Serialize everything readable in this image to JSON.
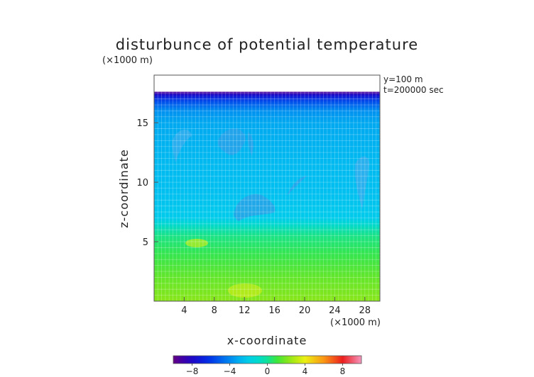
{
  "chart_data": {
    "type": "heatmap",
    "title": "disturbunce of potential temperature",
    "title_unit": "(×1000 m)",
    "info_lines": [
      "y=100 m",
      "t=200000 sec"
    ],
    "xlabel": "x-coordinate",
    "xunit": "(×1000 m)",
    "ylabel": "z-coordinate",
    "xlim": [
      0,
      30
    ],
    "ylim": [
      0,
      19
    ],
    "x_ticks": [
      4,
      8,
      12,
      16,
      20,
      24,
      28
    ],
    "y_ticks": [
      5,
      10,
      15
    ],
    "data_top": 17.6,
    "colorbar": {
      "range": [
        -10,
        10
      ],
      "ticks": [
        -8,
        -4,
        0,
        4,
        8
      ],
      "tick_labels": [
        "−8",
        "−4",
        "0",
        "4",
        "8"
      ]
    },
    "field_profile": [
      {
        "z": 0,
        "value": 2.2
      },
      {
        "z": 2,
        "value": 1.6
      },
      {
        "z": 4,
        "value": 0.8
      },
      {
        "z": 5.5,
        "value": 0.2
      },
      {
        "z": 6.5,
        "value": -1.2
      },
      {
        "z": 7,
        "value": -2.2
      },
      {
        "z": 9,
        "value": -2.6
      },
      {
        "z": 12,
        "value": -2.8
      },
      {
        "z": 15,
        "value": -3.2
      },
      {
        "z": 16,
        "value": -3.8
      },
      {
        "z": 16.8,
        "value": -5.5
      },
      {
        "z": 17.3,
        "value": -7.5
      },
      {
        "z": 17.6,
        "value": -9.5
      }
    ]
  }
}
